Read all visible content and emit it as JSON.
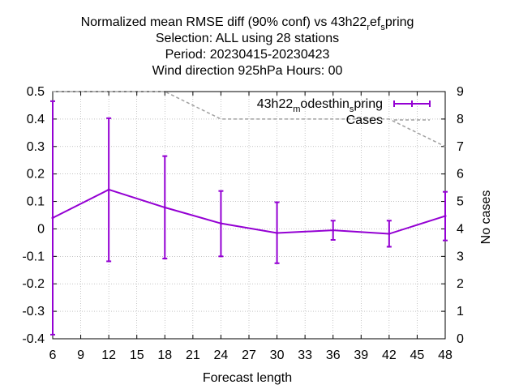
{
  "chart_data": {
    "type": "line",
    "title_lines": [
      "Normalized mean RMSE diff (90% conf) vs 43h22",
      "Selection: ALL using    28 stations",
      "Period: 20230415-20230423",
      "Wind direction 925hPa   Hours:  00"
    ],
    "title_suffix": {
      "sub1": "r",
      "mid1": "ef",
      "sub2": "s",
      "tail": "pring"
    },
    "xlabel": "Forecast length",
    "ylabel_right": "No cases",
    "xlim": [
      6,
      48
    ],
    "ylim": [
      -0.4,
      0.5
    ],
    "y2lim": [
      0,
      9
    ],
    "x_ticks": [
      "6",
      "9",
      "12",
      "15",
      "18",
      "21",
      "24",
      "27",
      "30",
      "33",
      "36",
      "39",
      "42",
      "45",
      "48"
    ],
    "y_ticks": [
      "-0.4",
      "-0.3",
      "-0.2",
      "-0.1",
      "0",
      "0.1",
      "0.2",
      "0.3",
      "0.4",
      "0.5"
    ],
    "y2_ticks": [
      "0",
      "1",
      "2",
      "3",
      "4",
      "5",
      "6",
      "7",
      "8",
      "9"
    ],
    "grid": true,
    "legend_position": "top-right",
    "series": [
      {
        "name": "43h22",
        "name_sub1": "m",
        "name_mid": "odesthin",
        "name_sub2": "s",
        "name_tail": "pring",
        "color": "#9400d3",
        "axis": "left",
        "x": [
          6,
          12,
          18,
          24,
          30,
          36,
          42,
          48
        ],
        "y": [
          0.04,
          0.143,
          0.078,
          0.02,
          -0.015,
          -0.005,
          -0.018,
          0.047
        ],
        "err_low": [
          -0.385,
          -0.118,
          -0.108,
          -0.1,
          -0.125,
          -0.04,
          -0.065,
          -0.042
        ],
        "err_high": [
          0.465,
          0.403,
          0.265,
          0.138,
          0.097,
          0.03,
          0.03,
          0.135
        ]
      },
      {
        "name": "Cases",
        "color": "#a0a0a0",
        "axis": "right",
        "dashed": true,
        "x": [
          6,
          12,
          18,
          24,
          30,
          36,
          42,
          48
        ],
        "y": [
          9,
          9,
          9,
          8,
          8,
          8,
          8,
          7
        ]
      }
    ]
  }
}
